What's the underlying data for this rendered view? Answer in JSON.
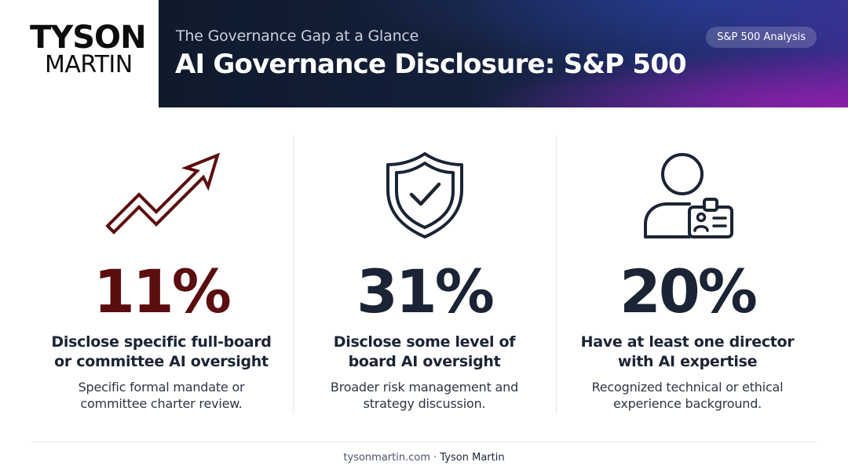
{
  "brand": {
    "logo_line1": "TYSON",
    "logo_line2": "MARTIN"
  },
  "header": {
    "subtitle": "The Governance Gap at a Glance",
    "title": "AI Governance Disclosure: S&P 500",
    "badge": "S&P 500 Analysis"
  },
  "stats": [
    {
      "icon": "trend-up-arrow-icon",
      "value": "11%",
      "headline_line1": "Disclose specific full-board",
      "headline_line2": "or committee AI oversight",
      "desc_line1": "Specific formal mandate or",
      "desc_line2": "committee charter review.",
      "color": "#5c0d0f"
    },
    {
      "icon": "shield-check-icon",
      "value": "31%",
      "headline_line1": "Disclose some level of",
      "headline_line2": "board AI oversight",
      "desc_line1": "Broader risk management and",
      "desc_line2": "strategy discussion.",
      "color": "#1b2434"
    },
    {
      "icon": "person-id-badge-icon",
      "value": "20%",
      "headline_line1": "Have at least one director",
      "headline_line2": "with AI expertise",
      "desc_line1": "Recognized technical or ethical",
      "desc_line2": "experience background.",
      "color": "#1b2434"
    }
  ],
  "footer": {
    "site": "tysonmartin.com",
    "separator": " · ",
    "name": "Tyson Martin"
  }
}
